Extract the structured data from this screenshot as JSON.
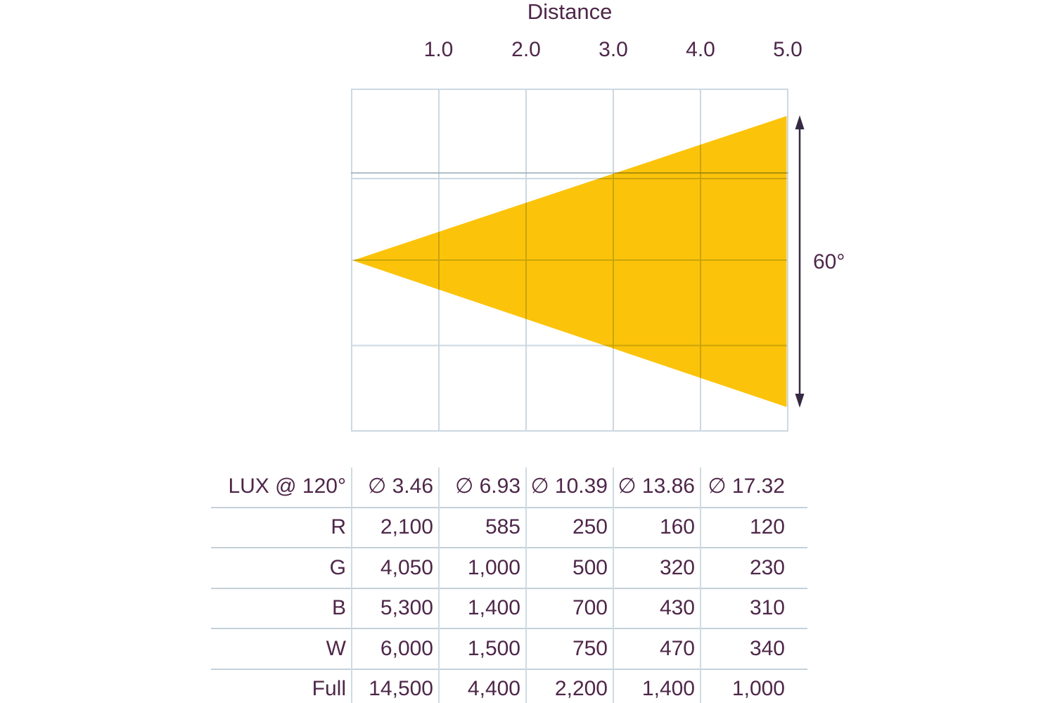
{
  "theme": {
    "text_color": "#4e2749",
    "beam_color": "#fcc30b",
    "grid_color": "#ccd8e2",
    "grid_dark_color": "#96a8b4",
    "arrow_color": "#362a42",
    "row_line_color": "#c3d1da",
    "col_line_color": "#cfdbe3"
  },
  "chart": {
    "title": "Distance",
    "ticks": [
      "1.0",
      "2.0",
      "3.0",
      "4.0",
      "5.0"
    ],
    "beam_angle_label": "60°"
  },
  "table": {
    "header": [
      "LUX @ 120°",
      "∅ 3.46",
      "∅ 6.93",
      "∅ 10.39",
      "∅ 13.86",
      "∅ 17.32"
    ],
    "rows": [
      {
        "label": "R",
        "values": [
          "2,100",
          "585",
          "250",
          "160",
          "120"
        ]
      },
      {
        "label": "G",
        "values": [
          "4,050",
          "1,000",
          "500",
          "320",
          "230"
        ]
      },
      {
        "label": "B",
        "values": [
          "5,300",
          "1,400",
          "700",
          "430",
          "310"
        ]
      },
      {
        "label": "W",
        "values": [
          "6,000",
          "1,500",
          "750",
          "470",
          "340"
        ]
      },
      {
        "label": "Full",
        "values": [
          "14,500",
          "4,400",
          "2,200",
          "1,400",
          "1,000"
        ]
      }
    ]
  },
  "chart_data": {
    "type": "table",
    "title": "Distance",
    "beam_diagram": {
      "axis_label": "Distance",
      "distance_ticks_m": [
        1.0,
        2.0,
        3.0,
        4.0,
        5.0
      ],
      "beam_angle_label": "60°",
      "field_angle_deg": 120,
      "grid": "on",
      "cone_color": "#fcc30b"
    },
    "columns": [
      "LUX @ 120°",
      "∅ 3.46",
      "∅ 6.93",
      "∅ 10.39",
      "∅ 13.86",
      "∅ 17.32"
    ],
    "diameters_m": [
      3.46,
      6.93,
      10.39,
      13.86,
      17.32
    ],
    "rows": [
      {
        "channel": "R",
        "lux": [
          2100,
          585,
          250,
          160,
          120
        ]
      },
      {
        "channel": "G",
        "lux": [
          4050,
          1000,
          500,
          320,
          230
        ]
      },
      {
        "channel": "B",
        "lux": [
          5300,
          1400,
          700,
          430,
          310
        ]
      },
      {
        "channel": "W",
        "lux": [
          6000,
          1500,
          750,
          470,
          340
        ]
      },
      {
        "channel": "Full",
        "lux": [
          14500,
          4400,
          2200,
          1400,
          1000
        ]
      }
    ]
  }
}
